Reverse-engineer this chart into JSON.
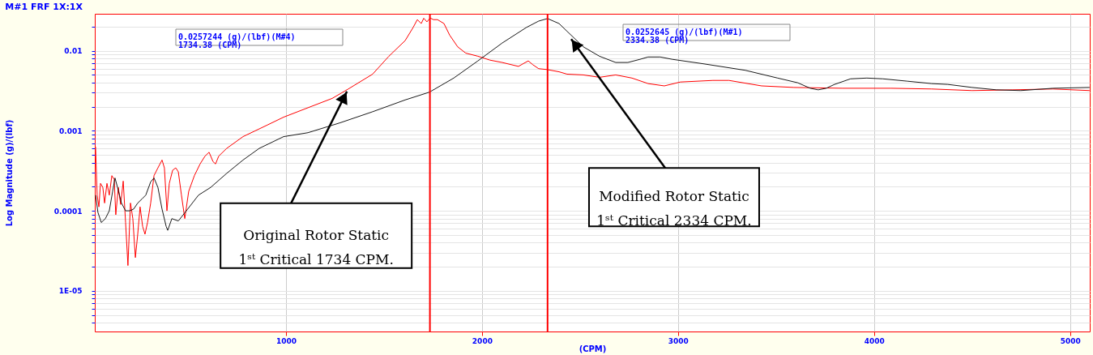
{
  "chart_data": {
    "type": "line",
    "title": "M#1 FRF 1X:1X",
    "xlabel": "(CPM)",
    "ylabel": "Log Magnitude (g)/(lbf)",
    "log": "y",
    "grid": true,
    "marker": "none",
    "line_style": "solid",
    "xlim": [
      25,
      5100
    ],
    "xticks": [
      1000,
      2000,
      3000,
      4000,
      5000
    ],
    "ylim": [
      3.1e-06,
      0.029
    ],
    "yticks": [
      {
        "value": 4e-06,
        "label": null
      },
      {
        "value": 5e-06,
        "label": null
      },
      {
        "value": 6e-06,
        "label": null
      },
      {
        "value": 7e-06,
        "label": null
      },
      {
        "value": 8e-06,
        "label": null
      },
      {
        "value": 9e-06,
        "label": null
      },
      {
        "value": 1e-05,
        "label": "1E-05"
      },
      {
        "value": 2e-05,
        "label": null
      },
      {
        "value": 3e-05,
        "label": null
      },
      {
        "value": 4e-05,
        "label": null
      },
      {
        "value": 5e-05,
        "label": null
      },
      {
        "value": 6e-05,
        "label": null
      },
      {
        "value": 7e-05,
        "label": null
      },
      {
        "value": 8e-05,
        "label": null
      },
      {
        "value": 9e-05,
        "label": null
      },
      0.0001,
      {
        "value": 0.0002,
        "label": null
      },
      {
        "value": 0.0003,
        "label": null
      },
      {
        "value": 0.0004,
        "label": null
      },
      {
        "value": 0.0005,
        "label": null
      },
      {
        "value": 0.0006,
        "label": null
      },
      {
        "value": 0.0007,
        "label": null
      },
      {
        "value": 0.0008,
        "label": null
      },
      {
        "value": 0.0009,
        "label": null
      },
      0.001,
      {
        "value": 0.002,
        "label": null
      },
      {
        "value": 0.003,
        "label": null
      },
      {
        "value": 0.004,
        "label": null
      },
      {
        "value": 0.005,
        "label": null
      },
      {
        "value": 0.006,
        "label": null
      },
      {
        "value": 0.007,
        "label": null
      },
      {
        "value": 0.008,
        "label": null
      },
      {
        "value": 0.009,
        "label": null
      },
      0.01,
      {
        "value": 0.02,
        "label": null
      }
    ],
    "series": [
      {
        "color": "#ff0000",
        "x": [
          29,
          37,
          46,
          54,
          66,
          75,
          87,
          99,
          112,
          124,
          132,
          145,
          157,
          170,
          182,
          194,
          207,
          219,
          232,
          244,
          256,
          269,
          281,
          294,
          310,
          327,
          347,
          368,
          380,
          393,
          405,
          422,
          438,
          451,
          467,
          484,
          504,
          533,
          562,
          587,
          608,
          628,
          641,
          657,
          698,
          781,
          905,
          988,
          1112,
          1236,
          1318,
          1442,
          1525,
          1608,
          1649,
          1670,
          1690,
          1703,
          1719,
          1736,
          1752,
          1773,
          1806,
          1835,
          1876,
          1917,
          1979,
          2041,
          2103,
          2186,
          2207,
          2236,
          2260,
          2289,
          2331,
          2393,
          2434,
          2517,
          2599,
          2682,
          2765,
          2847,
          2930,
          3012,
          3178,
          3260,
          3426,
          3591,
          3839,
          4087,
          4293,
          4500,
          4707,
          4913,
          5099
        ],
        "values": [
          0.000631,
          0.000157,
          0.000112,
          0.00022,
          0.000196,
          0.000125,
          0.00022,
          0.000157,
          0.000275,
          0.000246,
          8.93e-05,
          0.000196,
          0.00012,
          0.000235,
          7.14e-05,
          2.07e-05,
          0.000125,
          7.98e-05,
          2.6e-05,
          5.1e-05,
          0.000112,
          6.38e-05,
          5.1e-05,
          7.14e-05,
          0.000125,
          0.000275,
          0.000344,
          0.000431,
          0.000344,
          0.0001,
          0.00022,
          0.000321,
          0.000344,
          0.000307,
          0.000157,
          8e-05,
          0.000175,
          0.000275,
          0.000385,
          0.000482,
          0.000539,
          0.000412,
          0.000385,
          0.000482,
          0.000603,
          0.000845,
          0.00118,
          0.00148,
          0.00194,
          0.00254,
          0.00333,
          0.0051,
          0.00855,
          0.0134,
          0.0196,
          0.0245,
          0.0219,
          0.0255,
          0.023,
          0.0257,
          0.0245,
          0.0245,
          0.0219,
          0.0157,
          0.0112,
          0.00935,
          0.00855,
          0.00764,
          0.00714,
          0.00638,
          0.00683,
          0.00747,
          0.00668,
          0.00597,
          0.00583,
          0.00546,
          0.0051,
          0.00499,
          0.00466,
          0.00499,
          0.00456,
          0.00389,
          0.00364,
          0.00407,
          0.00426,
          0.00426,
          0.00364,
          0.00348,
          0.0034,
          0.0034,
          0.00333,
          0.00318,
          0.00325,
          0.00333,
          0.00318
        ]
      },
      {
        "color": "#1a1a1a",
        "x": [
          29,
          41,
          58,
          79,
          99,
          116,
          128,
          141,
          161,
          182,
          203,
          223,
          244,
          265,
          285,
          310,
          327,
          347,
          368,
          389,
          397,
          418,
          451,
          492,
          554,
          616,
          698,
          781,
          864,
          988,
          1112,
          1277,
          1442,
          1608,
          1732,
          1856,
          1979,
          2103,
          2227,
          2289,
          2334.38,
          2393,
          2434,
          2517,
          2599,
          2682,
          2744,
          2806,
          2847,
          2909,
          2971,
          3137,
          3343,
          3508,
          3611,
          3674,
          3715,
          3756,
          3798,
          3880,
          3963,
          4045,
          4169,
          4293,
          4376,
          4500,
          4624,
          4748,
          4913,
          5099
        ],
        "values": [
          0.000157,
          9.55e-05,
          7.14e-05,
          7.98e-05,
          0.0001,
          0.000175,
          0.000257,
          0.000196,
          0.000125,
          0.0001,
          0.0001,
          0.000105,
          0.000125,
          0.00014,
          0.000157,
          0.00023,
          0.000257,
          0.000196,
          0.000105,
          6.38e-05,
          5.7e-05,
          7.98e-05,
          7.46e-05,
          0.0001,
          0.000157,
          0.000196,
          0.000294,
          0.000431,
          0.000603,
          0.000845,
          0.000946,
          0.00126,
          0.00173,
          0.00243,
          0.00304,
          0.00456,
          0.00747,
          0.0125,
          0.0196,
          0.0235,
          0.0252645,
          0.0219,
          0.0175,
          0.0112,
          0.00855,
          0.00714,
          0.00714,
          0.00782,
          0.00836,
          0.00836,
          0.00782,
          0.00683,
          0.0057,
          0.00456,
          0.00398,
          0.0034,
          0.00325,
          0.0034,
          0.0038,
          0.00446,
          0.00456,
          0.00446,
          0.00417,
          0.00389,
          0.0038,
          0.00348,
          0.00325,
          0.00318,
          0.0034,
          0.00348
        ]
      }
    ],
    "ref_lines": [
      {
        "axis": "x",
        "value": 1734.38,
        "color": "#ff0000"
      },
      {
        "axis": "x",
        "value": 2334.38,
        "color": "#ff0000"
      }
    ],
    "annotations": [
      "0.0257244 (g)/(lbf)(M#4)\n1734.38 (CPM)",
      "0.0252645 (g)/(lbf)(M#1)\n2334.38 (CPM)",
      {
        "text": "Original Rotor Static\n1ˢᵗ Critical 1734 CPM.",
        "x": 1311,
        "y": 0.0031
      },
      {
        "text": "Modified Rotor Static\n1ˢᵗ Critical 2334 CPM.",
        "x": 2455,
        "y": 0.014
      }
    ]
  }
}
